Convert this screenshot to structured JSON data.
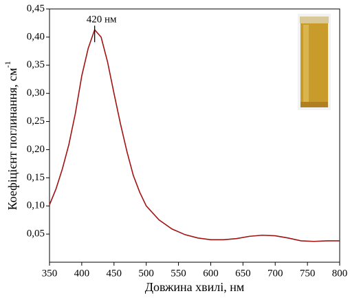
{
  "chart_data": {
    "type": "line",
    "xlabel": "Довжина хвилі, нм",
    "ylabel": "Коефіцієнт поглинання, см",
    "ylabel_superscript": "-1",
    "annotation": {
      "text": "420 нм",
      "x": 420
    },
    "x": [
      350,
      360,
      370,
      380,
      390,
      400,
      410,
      420,
      430,
      440,
      450,
      460,
      470,
      480,
      490,
      500,
      520,
      540,
      560,
      580,
      600,
      620,
      640,
      660,
      680,
      700,
      720,
      740,
      760,
      780,
      800
    ],
    "series": [
      {
        "color": "#a01212",
        "values": [
          0.102,
          0.13,
          0.166,
          0.209,
          0.264,
          0.331,
          0.38,
          0.413,
          0.4,
          0.356,
          0.3,
          0.246,
          0.197,
          0.154,
          0.124,
          0.1,
          0.075,
          0.059,
          0.049,
          0.043,
          0.04,
          0.04,
          0.042,
          0.046,
          0.048,
          0.047,
          0.043,
          0.038,
          0.037,
          0.038,
          0.038
        ]
      }
    ],
    "xlim": [
      350,
      800
    ],
    "ylim": [
      0,
      0.45
    ],
    "xticks": [
      350,
      400,
      450,
      500,
      550,
      600,
      650,
      700,
      750,
      800
    ],
    "yticks": [
      {
        "value": 0.05,
        "label": "0,05"
      },
      {
        "value": 0.1,
        "label": "0,10"
      },
      {
        "value": 0.15,
        "label": "0,15"
      },
      {
        "value": 0.2,
        "label": "0,20"
      },
      {
        "value": 0.25,
        "label": "0,25"
      },
      {
        "value": 0.3,
        "label": "0,30"
      },
      {
        "value": 0.35,
        "label": "0,35"
      },
      {
        "value": 0.4,
        "label": "0,40"
      },
      {
        "value": 0.45,
        "label": "0,45"
      }
    ],
    "grid": false
  }
}
